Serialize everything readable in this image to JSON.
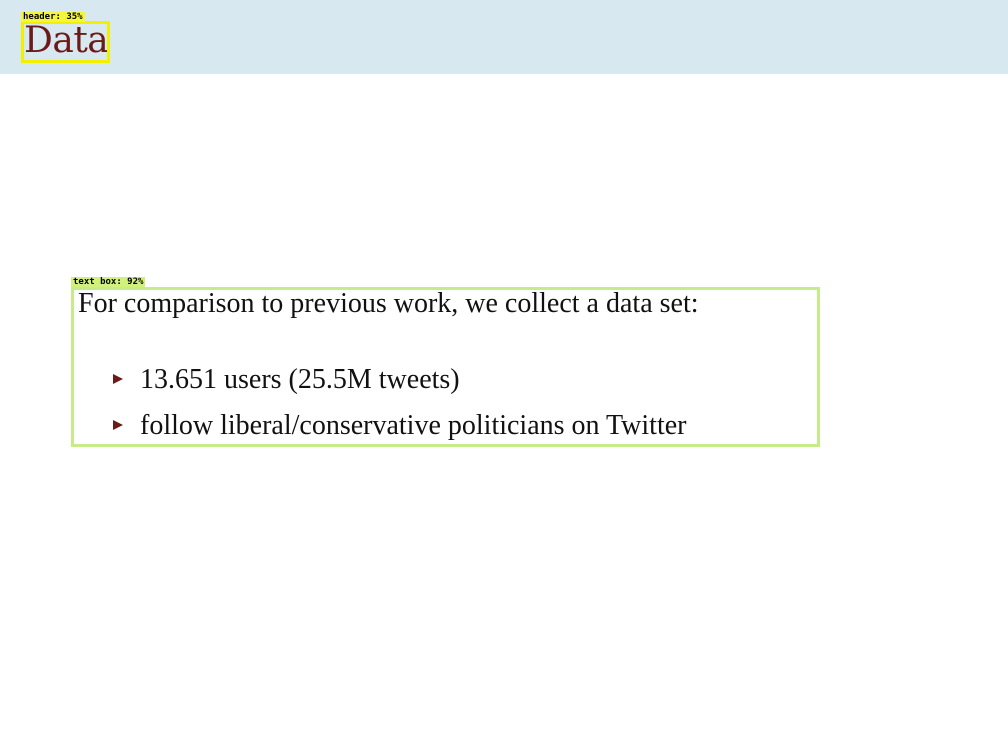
{
  "header": {
    "title": "Data",
    "detection_label": "header: 35%"
  },
  "text_box": {
    "detection_label": "text box: 92%",
    "intro": "For comparison to previous work, we collect a data set:",
    "bullets": [
      "13.651 users (25.5M tweets)",
      "follow liberal/conservative politicians on Twitter"
    ]
  },
  "colors": {
    "header_band": "#d8e8f0",
    "title_text": "#6b1a1a",
    "bullet_marker": "#6b1a1a",
    "header_detection_box": "#f0f000",
    "text_detection_box": "#c6ec8a"
  },
  "icons": {
    "bullet": "triangle-right-icon"
  }
}
